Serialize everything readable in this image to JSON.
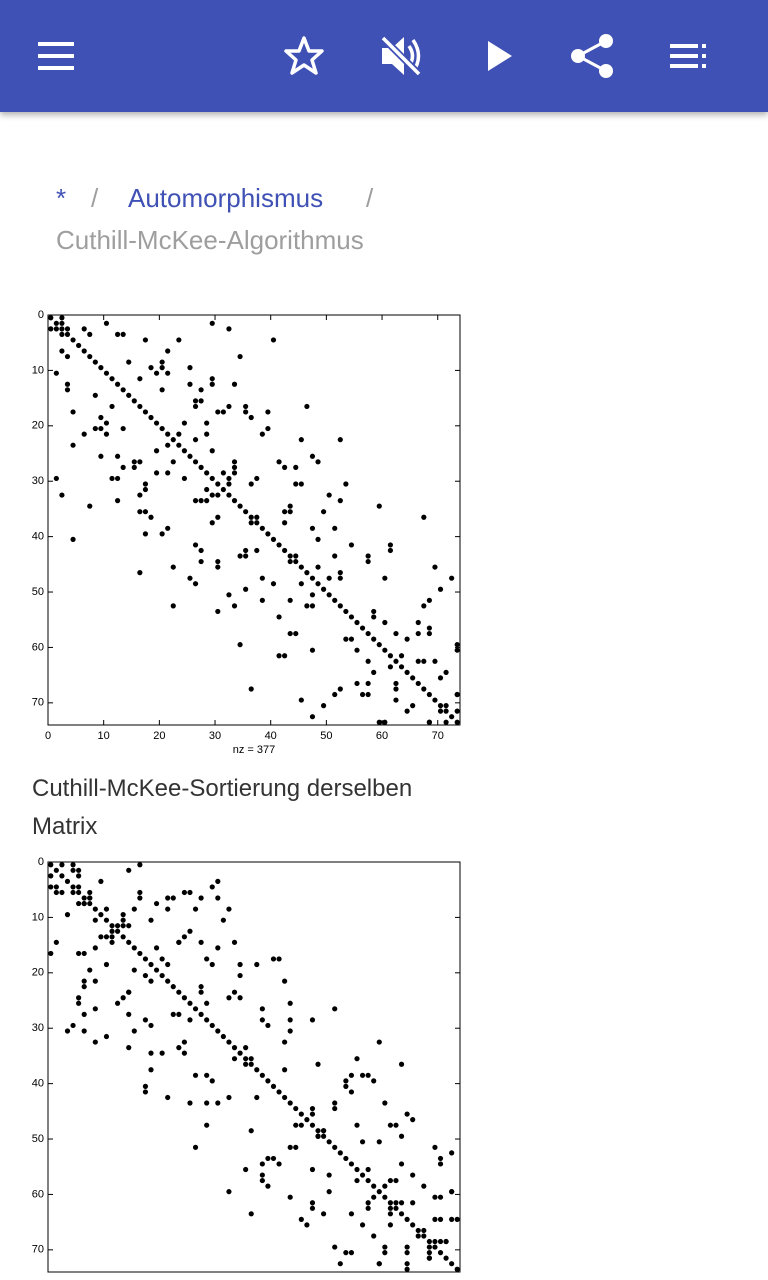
{
  "breadcrumb": {
    "items": [
      "*",
      "Automorphismus",
      "Cuthill-McKee-Algorithmus"
    ],
    "separator": "/"
  },
  "figures": [
    {
      "lim": [
        0,
        74
      ],
      "xticks": [
        0,
        10,
        20,
        30,
        40,
        50,
        60,
        70
      ],
      "yticks": [
        0,
        10,
        20,
        30,
        40,
        50,
        60,
        70
      ],
      "xlabel": "nz = 377",
      "caption": "Cuthill-McKee-Sortierung derselben Matrix"
    },
    {
      "lim": [
        0,
        74
      ],
      "yticks": [
        0,
        10,
        20,
        30,
        40,
        50,
        60,
        70
      ]
    }
  ]
}
